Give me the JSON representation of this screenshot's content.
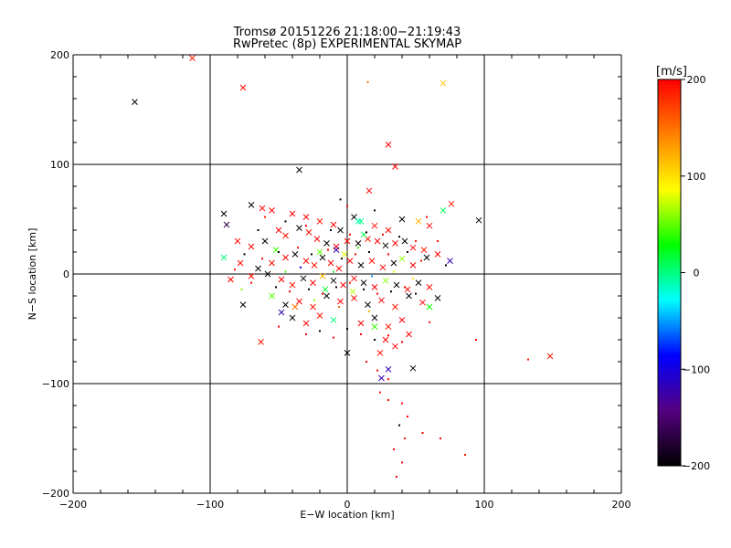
{
  "chart_data": {
    "type": "scatter",
    "title": "Tromsø 20151226 21:18:00−21:19:43",
    "subtitle": "RwPretec (8p) EXPERIMENTAL SKYMAP",
    "xlabel": "E−W location [km]",
    "ylabel": "N−S location [km]",
    "xlim": [
      -200,
      200
    ],
    "ylim": [
      -200,
      200
    ],
    "x_ticks": [
      "−200",
      "−100",
      "0",
      "100",
      "200"
    ],
    "y_ticks": [
      "−200",
      "−100",
      "0",
      "100",
      "200"
    ],
    "grid": true,
    "colorbar": {
      "label": "[m/s]",
      "range": [
        -200,
        200
      ],
      "ticks": [
        "−200",
        "−100",
        "0",
        "100",
        "200"
      ],
      "colors": [
        "#000000",
        "#550080",
        "#0000ff",
        "#00ffff",
        "#00ff00",
        "#ffff00",
        "#ff8000",
        "#ff0000"
      ]
    },
    "series": [
      {
        "marker": "x",
        "points": [
          [
            -155,
            157,
            -200
          ],
          [
            -113,
            197,
            190
          ],
          [
            -76,
            170,
            195
          ],
          [
            70,
            174,
            110
          ],
          [
            30,
            118,
            200
          ],
          [
            35,
            98,
            200
          ],
          [
            16,
            76,
            200
          ],
          [
            -35,
            95,
            -200
          ],
          [
            96,
            49,
            -200
          ],
          [
            70,
            58,
            10
          ],
          [
            76,
            64,
            190
          ],
          [
            75,
            12,
            -120
          ],
          [
            148,
            -75,
            190
          ],
          [
            -76,
            -28,
            -200
          ],
          [
            -63,
            -62,
            190
          ],
          [
            0,
            -72,
            -200
          ],
          [
            30,
            -87,
            -120
          ],
          [
            25,
            -95,
            -120
          ],
          [
            48,
            -86,
            -200
          ],
          [
            -90,
            55,
            -200
          ],
          [
            -70,
            63,
            -200
          ],
          [
            -62,
            60,
            195
          ],
          [
            -55,
            58,
            200
          ],
          [
            -40,
            55,
            200
          ],
          [
            -30,
            52,
            200
          ],
          [
            -20,
            48,
            190
          ],
          [
            -10,
            45,
            200
          ],
          [
            -5,
            40,
            -200
          ],
          [
            5,
            52,
            -200
          ],
          [
            10,
            48,
            0
          ],
          [
            20,
            44,
            190
          ],
          [
            30,
            40,
            200
          ],
          [
            40,
            50,
            -200
          ],
          [
            52,
            48,
            120
          ],
          [
            60,
            44,
            200
          ],
          [
            -88,
            45,
            -170
          ],
          [
            -80,
            30,
            195
          ],
          [
            -70,
            25,
            200
          ],
          [
            -60,
            30,
            -200
          ],
          [
            -50,
            40,
            200
          ],
          [
            -45,
            35,
            190
          ],
          [
            -35,
            42,
            -200
          ],
          [
            -28,
            38,
            195
          ],
          [
            -22,
            32,
            200
          ],
          [
            -15,
            28,
            -200
          ],
          [
            -8,
            25,
            200
          ],
          [
            0,
            30,
            195
          ],
          [
            8,
            28,
            -200
          ],
          [
            15,
            32,
            190
          ],
          [
            22,
            30,
            200
          ],
          [
            28,
            26,
            -200
          ],
          [
            35,
            28,
            200
          ],
          [
            42,
            30,
            -200
          ],
          [
            48,
            24,
            200
          ],
          [
            56,
            22,
            190
          ],
          [
            -90,
            15,
            0
          ],
          [
            -78,
            10,
            200
          ],
          [
            -65,
            5,
            -200
          ],
          [
            -55,
            10,
            195
          ],
          [
            -45,
            15,
            200
          ],
          [
            -38,
            18,
            -200
          ],
          [
            -30,
            12,
            200
          ],
          [
            -24,
            8,
            190
          ],
          [
            -18,
            15,
            -200
          ],
          [
            -12,
            10,
            200
          ],
          [
            -6,
            5,
            195
          ],
          [
            2,
            12,
            200
          ],
          [
            10,
            8,
            -200
          ],
          [
            18,
            12,
            195
          ],
          [
            26,
            6,
            200
          ],
          [
            34,
            10,
            -200
          ],
          [
            40,
            14,
            60
          ],
          [
            48,
            8,
            200
          ],
          [
            58,
            15,
            -200
          ],
          [
            66,
            18,
            200
          ],
          [
            -85,
            -5,
            200
          ],
          [
            -70,
            -2,
            195
          ],
          [
            -58,
            0,
            -200
          ],
          [
            -48,
            -5,
            200
          ],
          [
            -40,
            -10,
            190
          ],
          [
            -32,
            -4,
            -200
          ],
          [
            -25,
            -8,
            200
          ],
          [
            -18,
            -2,
            120
          ],
          [
            -10,
            -6,
            -200
          ],
          [
            -3,
            -10,
            200
          ],
          [
            5,
            -4,
            195
          ],
          [
            12,
            -8,
            -200
          ],
          [
            20,
            -12,
            200
          ],
          [
            28,
            -6,
            60
          ],
          [
            36,
            -10,
            -200
          ],
          [
            44,
            -14,
            200
          ],
          [
            52,
            -8,
            -200
          ],
          [
            60,
            -12,
            195
          ],
          [
            66,
            -22,
            -200
          ],
          [
            -55,
            -20,
            50
          ],
          [
            -45,
            -28,
            -200
          ],
          [
            -35,
            -25,
            200
          ],
          [
            -25,
            -30,
            190
          ],
          [
            -15,
            -20,
            -200
          ],
          [
            -5,
            -25,
            200
          ],
          [
            5,
            -22,
            195
          ],
          [
            15,
            -28,
            -200
          ],
          [
            25,
            -24,
            200
          ],
          [
            35,
            -30,
            190
          ],
          [
            45,
            -20,
            -200
          ],
          [
            55,
            -26,
            200
          ],
          [
            -40,
            -40,
            -200
          ],
          [
            -30,
            -45,
            200
          ],
          [
            -20,
            -38,
            195
          ],
          [
            -10,
            -42,
            0
          ],
          [
            10,
            -45,
            200
          ],
          [
            20,
            -40,
            -200
          ],
          [
            30,
            -48,
            190
          ],
          [
            40,
            -42,
            200
          ],
          [
            -48,
            -35,
            -120
          ],
          [
            -38,
            -30,
            150
          ],
          [
            60,
            -30,
            30
          ],
          [
            -8,
            22,
            -120
          ],
          [
            -52,
            22,
            40
          ],
          [
            -20,
            20,
            50
          ],
          [
            8,
            48,
            -10
          ],
          [
            12,
            36,
            10
          ],
          [
            -2,
            18,
            80
          ],
          [
            4,
            -16,
            70
          ],
          [
            -16,
            -14,
            20
          ],
          [
            20,
            -48,
            40
          ],
          [
            28,
            -60,
            200
          ],
          [
            35,
            -66,
            195
          ],
          [
            45,
            -55,
            200
          ],
          [
            24,
            -72,
            190
          ]
        ]
      },
      {
        "marker": "dot",
        "points": [
          [
            15,
            175,
            150
          ],
          [
            -5,
            68,
            -200
          ],
          [
            0,
            62,
            200
          ],
          [
            20,
            58,
            -200
          ],
          [
            -60,
            52,
            190
          ],
          [
            -45,
            48,
            -200
          ],
          [
            -30,
            44,
            200
          ],
          [
            -12,
            40,
            -200
          ],
          [
            2,
            36,
            195
          ],
          [
            14,
            38,
            -200
          ],
          [
            26,
            36,
            200
          ],
          [
            38,
            34,
            -200
          ],
          [
            50,
            30,
            190
          ],
          [
            -75,
            18,
            -200
          ],
          [
            -62,
            14,
            200
          ],
          [
            -50,
            20,
            -200
          ],
          [
            -36,
            24,
            195
          ],
          [
            -26,
            18,
            -200
          ],
          [
            -14,
            22,
            200
          ],
          [
            -4,
            14,
            -200
          ],
          [
            6,
            18,
            195
          ],
          [
            16,
            20,
            -200
          ],
          [
            30,
            18,
            200
          ],
          [
            44,
            20,
            -200
          ],
          [
            54,
            12,
            195
          ],
          [
            -70,
            -8,
            200
          ],
          [
            -52,
            -12,
            -200
          ],
          [
            -42,
            -16,
            195
          ],
          [
            -28,
            -14,
            -200
          ],
          [
            -18,
            -18,
            200
          ],
          [
            -8,
            -12,
            -200
          ],
          [
            2,
            -8,
            195
          ],
          [
            12,
            -14,
            -200
          ],
          [
            22,
            -18,
            200
          ],
          [
            32,
            -16,
            -200
          ],
          [
            42,
            -12,
            195
          ],
          [
            50,
            -18,
            -200
          ],
          [
            -30,
            -55,
            200
          ],
          [
            -20,
            -52,
            -200
          ],
          [
            -10,
            -58,
            195
          ],
          [
            0,
            -50,
            -200
          ],
          [
            10,
            -55,
            200
          ],
          [
            20,
            -60,
            -200
          ],
          [
            30,
            -56,
            195
          ],
          [
            40,
            -62,
            200
          ],
          [
            14,
            -80,
            200
          ],
          [
            22,
            -88,
            195
          ],
          [
            30,
            -96,
            200
          ],
          [
            24,
            -108,
            195
          ],
          [
            30,
            -115,
            200
          ],
          [
            40,
            -118,
            195
          ],
          [
            44,
            -130,
            200
          ],
          [
            38,
            -138,
            -200
          ],
          [
            42,
            -150,
            195
          ],
          [
            34,
            -160,
            200
          ],
          [
            40,
            -172,
            195
          ],
          [
            36,
            -185,
            200
          ],
          [
            55,
            -145,
            195
          ],
          [
            68,
            -150,
            200
          ],
          [
            86,
            -165,
            195
          ],
          [
            94,
            -60,
            200
          ],
          [
            132,
            -78,
            195
          ],
          [
            -77,
            -14,
            60
          ],
          [
            -45,
            2,
            40
          ],
          [
            -10,
            2,
            20
          ],
          [
            18,
            -2,
            -50
          ],
          [
            34,
            2,
            80
          ],
          [
            -24,
            -24,
            60
          ],
          [
            8,
            24,
            40
          ],
          [
            -34,
            6,
            -100
          ],
          [
            48,
            -4,
            100
          ],
          [
            -6,
            -30,
            150
          ],
          [
            16,
            -34,
            120
          ],
          [
            -50,
            -48,
            200
          ],
          [
            60,
            -44,
            195
          ],
          [
            -65,
            40,
            -200
          ],
          [
            66,
            30,
            195
          ],
          [
            -82,
            4,
            200
          ],
          [
            72,
            8,
            -200
          ],
          [
            58,
            52,
            200
          ]
        ]
      }
    ]
  }
}
